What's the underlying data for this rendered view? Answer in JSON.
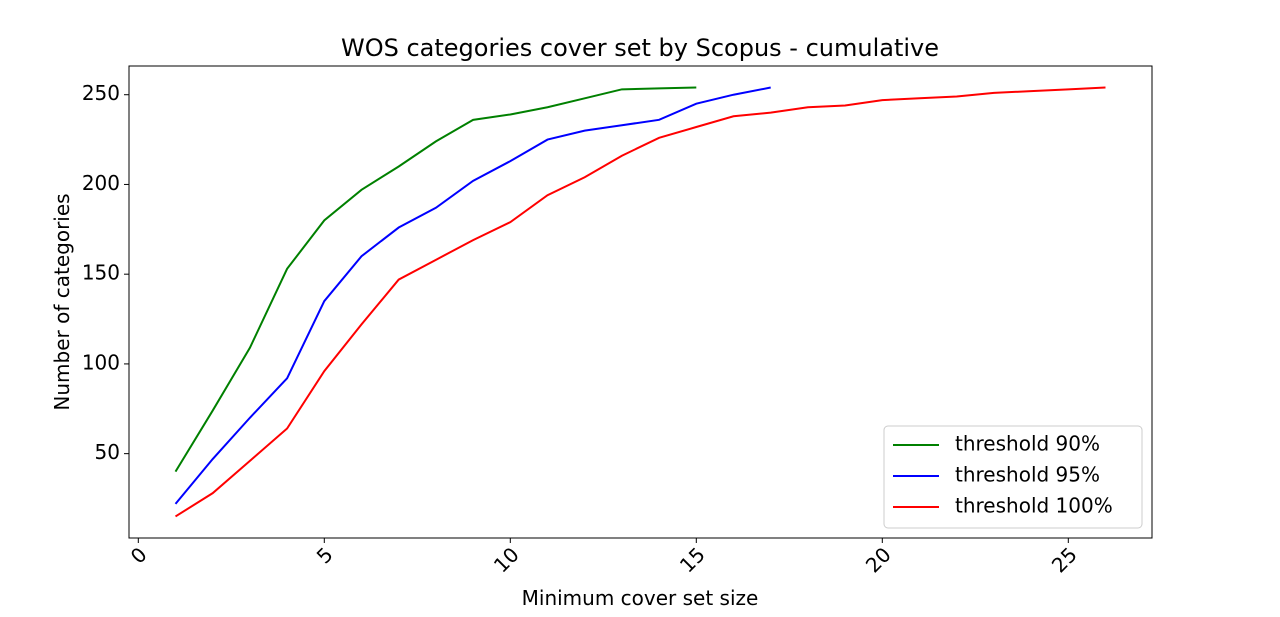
{
  "chart_data": {
    "type": "line",
    "title": "WOS categories cover set by Scopus - cumulative",
    "x_label": "Minimum cover set size",
    "y_label": "Number of categories",
    "xlim": [
      -0.25,
      27.25
    ],
    "xticks": [
      0,
      5,
      10,
      15,
      20,
      25
    ],
    "ylim": [
      3,
      266
    ],
    "yticks": [
      50,
      100,
      150,
      200,
      250
    ],
    "grid": false,
    "legend": "lower right",
    "series": [
      {
        "name": "threshold 90%",
        "color": "#008000",
        "x": [
          1,
          2,
          3,
          4,
          5,
          6,
          7,
          8,
          9,
          10,
          11,
          12,
          13,
          14,
          15
        ],
        "values": [
          40,
          74,
          109,
          153,
          180,
          197,
          210,
          224,
          236,
          239,
          243,
          248,
          253,
          253.5,
          254
        ]
      },
      {
        "name": "threshold 95%",
        "color": "#0000ff",
        "x": [
          1,
          2,
          3,
          4,
          5,
          6,
          7,
          8,
          9,
          10,
          11,
          12,
          13,
          14,
          15,
          16,
          17
        ],
        "values": [
          22,
          47,
          70,
          92,
          135,
          160,
          176,
          187,
          202,
          213,
          225,
          230,
          233,
          236,
          245,
          250,
          254
        ]
      },
      {
        "name": "threshold 100%",
        "color": "#ff0000",
        "x": [
          1,
          2,
          3,
          4,
          5,
          6,
          7,
          8,
          9,
          10,
          11,
          12,
          13,
          14,
          15,
          16,
          17,
          18,
          19,
          20,
          21,
          22,
          23,
          24,
          25,
          26
        ],
        "values": [
          15,
          28,
          46,
          64,
          96,
          122,
          147,
          158,
          169,
          179,
          194,
          204,
          216,
          226,
          232,
          238,
          240,
          243,
          244,
          247,
          248,
          249,
          251,
          252,
          253,
          254
        ]
      }
    ]
  }
}
